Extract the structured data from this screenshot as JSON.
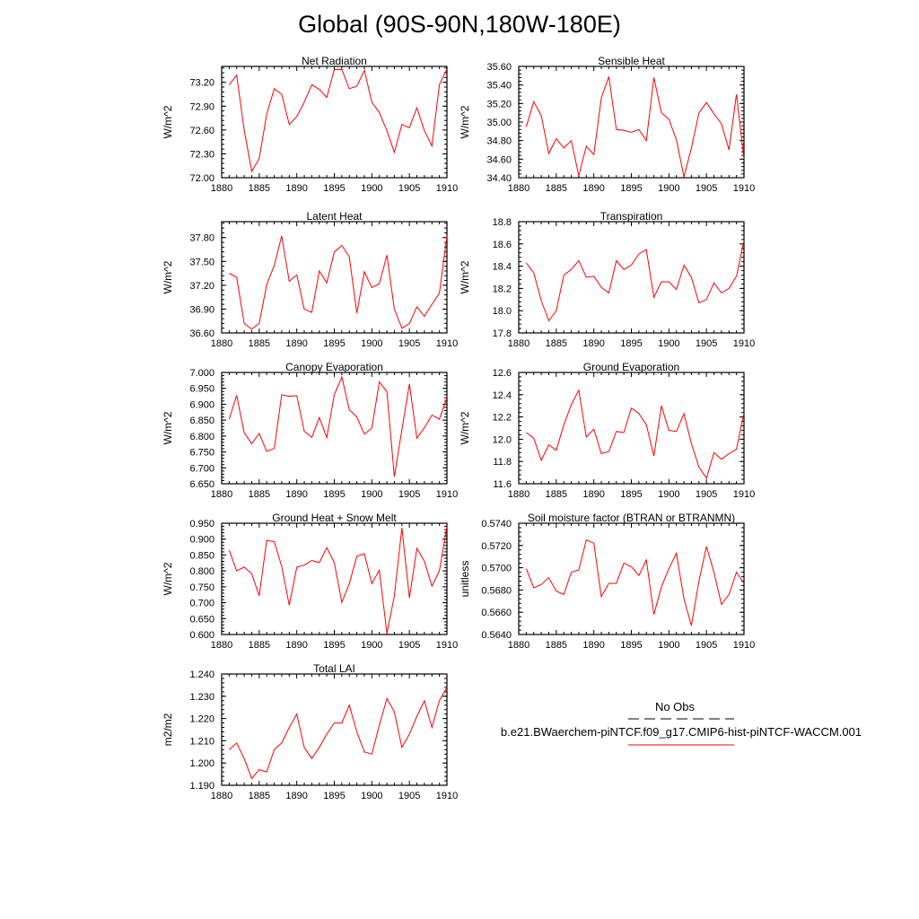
{
  "page": {
    "title": "Global (90S-90N,180W-180E)"
  },
  "legend": {
    "obs_label": "No Obs",
    "model_label": "b.e21.BWaerchem-piNTCF.f09_g17.CMIP6-hist-piNTCF-WACCM.001",
    "obs_color": "#000000",
    "model_color": "#ff0000"
  },
  "chart_data": [
    {
      "type": "line",
      "title": "Net Radiation",
      "ylabel": "W/m^2",
      "xlim": [
        1880,
        1910
      ],
      "ylim": [
        72.0,
        73.4
      ],
      "xticks": [
        1880,
        1885,
        1890,
        1895,
        1900,
        1905,
        1910
      ],
      "xtick_labels": [
        "1880",
        "1885",
        "1890",
        "1895",
        "1900",
        "1905",
        "1910"
      ],
      "yticks": [
        72.0,
        72.3,
        72.6,
        72.9,
        73.2
      ],
      "ytick_labels": [
        "72.00",
        "72.30",
        "72.60",
        "72.90",
        "73.20"
      ],
      "color": "#ff0000",
      "x": [
        1881,
        1882,
        1883,
        1884,
        1885,
        1886,
        1887,
        1888,
        1889,
        1890,
        1891,
        1892,
        1893,
        1894,
        1895,
        1896,
        1897,
        1898,
        1899,
        1900,
        1901,
        1902,
        1903,
        1904,
        1905,
        1906,
        1907,
        1908,
        1909,
        1910
      ],
      "y": [
        73.17,
        73.29,
        72.6,
        72.08,
        72.24,
        72.8,
        73.12,
        73.05,
        72.67,
        72.77,
        72.95,
        73.17,
        73.11,
        73.01,
        73.36,
        73.36,
        73.12,
        73.15,
        73.35,
        72.95,
        72.82,
        72.59,
        72.32,
        72.67,
        72.63,
        72.88,
        72.59,
        72.4,
        73.17,
        73.37
      ]
    },
    {
      "type": "line",
      "title": "Sensible Heat",
      "ylabel": "W/m^2",
      "xlim": [
        1880,
        1910
      ],
      "ylim": [
        34.4,
        35.6
      ],
      "xticks": [
        1880,
        1885,
        1890,
        1895,
        1900,
        1905,
        1910
      ],
      "xtick_labels": [
        "1880",
        "1885",
        "1890",
        "1895",
        "1900",
        "1905",
        "1910"
      ],
      "yticks": [
        34.4,
        34.6,
        34.8,
        35.0,
        35.2,
        35.4,
        35.6
      ],
      "ytick_labels": [
        "34.40",
        "34.60",
        "34.80",
        "35.00",
        "35.20",
        "35.40",
        "35.60"
      ],
      "color": "#ff0000",
      "x": [
        1881,
        1882,
        1883,
        1884,
        1885,
        1886,
        1887,
        1888,
        1889,
        1890,
        1891,
        1892,
        1893,
        1894,
        1895,
        1896,
        1897,
        1898,
        1899,
        1900,
        1901,
        1902,
        1903,
        1904,
        1905,
        1906,
        1907,
        1908,
        1909,
        1910
      ],
      "y": [
        34.95,
        35.22,
        35.07,
        34.66,
        34.82,
        34.72,
        34.8,
        34.42,
        34.74,
        34.65,
        35.26,
        35.49,
        34.92,
        34.91,
        34.89,
        34.92,
        34.8,
        35.48,
        35.1,
        35.03,
        34.81,
        34.41,
        34.72,
        35.1,
        35.21,
        35.09,
        34.98,
        34.7,
        35.3,
        34.6
      ]
    },
    {
      "type": "line",
      "title": "Latent Heat",
      "ylabel": "W/m^2",
      "xlim": [
        1880,
        1910
      ],
      "ylim": [
        36.6,
        38.0
      ],
      "xticks": [
        1880,
        1885,
        1890,
        1895,
        1900,
        1905,
        1910
      ],
      "xtick_labels": [
        "1880",
        "1885",
        "1890",
        "1895",
        "1900",
        "1905",
        "1910"
      ],
      "yticks": [
        36.6,
        36.9,
        37.2,
        37.5,
        37.8
      ],
      "ytick_labels": [
        "36.60",
        "36.90",
        "37.20",
        "37.50",
        "37.80"
      ],
      "color": "#ff0000",
      "x": [
        1881,
        1882,
        1883,
        1884,
        1885,
        1886,
        1887,
        1888,
        1889,
        1890,
        1891,
        1892,
        1893,
        1894,
        1895,
        1896,
        1897,
        1898,
        1899,
        1900,
        1901,
        1902,
        1903,
        1904,
        1905,
        1906,
        1907,
        1908,
        1909,
        1910
      ],
      "y": [
        37.35,
        37.3,
        36.72,
        36.65,
        36.72,
        37.21,
        37.45,
        37.82,
        37.25,
        37.33,
        36.9,
        36.86,
        37.38,
        37.23,
        37.62,
        37.7,
        37.56,
        36.85,
        37.37,
        37.17,
        37.22,
        37.58,
        36.9,
        36.66,
        36.72,
        36.93,
        36.81,
        36.96,
        37.1,
        37.82
      ]
    },
    {
      "type": "line",
      "title": "Transpiration",
      "ylabel": "W/m^2",
      "xlim": [
        1880,
        1910
      ],
      "ylim": [
        17.8,
        18.8
      ],
      "xticks": [
        1880,
        1885,
        1890,
        1895,
        1900,
        1905,
        1910
      ],
      "xtick_labels": [
        "1880",
        "1885",
        "1890",
        "1895",
        "1900",
        "1905",
        "1910"
      ],
      "yticks": [
        17.8,
        18.0,
        18.2,
        18.4,
        18.6,
        18.8
      ],
      "ytick_labels": [
        "17.8",
        "18.0",
        "18.2",
        "18.4",
        "18.6",
        "18.8"
      ],
      "color": "#ff0000",
      "x": [
        1881,
        1882,
        1883,
        1884,
        1885,
        1886,
        1887,
        1888,
        1889,
        1890,
        1891,
        1892,
        1893,
        1894,
        1895,
        1896,
        1897,
        1898,
        1899,
        1900,
        1901,
        1902,
        1903,
        1904,
        1905,
        1906,
        1907,
        1908,
        1909,
        1910
      ],
      "y": [
        18.43,
        18.34,
        18.09,
        17.91,
        18.0,
        18.32,
        18.37,
        18.45,
        18.3,
        18.31,
        18.21,
        18.16,
        18.45,
        18.37,
        18.41,
        18.51,
        18.55,
        18.12,
        18.26,
        18.26,
        18.19,
        18.41,
        18.3,
        18.07,
        18.1,
        18.25,
        18.16,
        18.2,
        18.31,
        18.63
      ]
    },
    {
      "type": "line",
      "title": "Canopy Evaporation",
      "ylabel": "W/m^2",
      "xlim": [
        1880,
        1910
      ],
      "ylim": [
        6.65,
        7.0
      ],
      "xticks": [
        1880,
        1885,
        1890,
        1895,
        1900,
        1905,
        1910
      ],
      "xtick_labels": [
        "1880",
        "1885",
        "1890",
        "1895",
        "1900",
        "1905",
        "1910"
      ],
      "yticks": [
        6.65,
        6.7,
        6.75,
        6.8,
        6.85,
        6.9,
        6.95,
        7.0
      ],
      "ytick_labels": [
        "6.650",
        "6.700",
        "6.750",
        "6.800",
        "6.850",
        "6.900",
        "6.950",
        "7.000"
      ],
      "color": "#ff0000",
      "x": [
        1881,
        1882,
        1883,
        1884,
        1885,
        1886,
        1887,
        1888,
        1889,
        1890,
        1891,
        1892,
        1893,
        1894,
        1895,
        1896,
        1897,
        1898,
        1899,
        1900,
        1901,
        1902,
        1903,
        1904,
        1905,
        1906,
        1907,
        1908,
        1909,
        1910
      ],
      "y": [
        6.853,
        6.928,
        6.81,
        6.776,
        6.808,
        6.752,
        6.761,
        6.93,
        6.925,
        6.927,
        6.815,
        6.796,
        6.858,
        6.795,
        6.93,
        6.986,
        6.883,
        6.86,
        6.806,
        6.825,
        6.97,
        6.94,
        6.672,
        6.82,
        6.964,
        6.793,
        6.826,
        6.866,
        6.853,
        6.92
      ]
    },
    {
      "type": "line",
      "title": "Ground Evaporation",
      "ylabel": "W/m^2",
      "xlim": [
        1880,
        1910
      ],
      "ylim": [
        11.6,
        12.6
      ],
      "xticks": [
        1880,
        1885,
        1890,
        1895,
        1900,
        1905,
        1910
      ],
      "xtick_labels": [
        "1880",
        "1885",
        "1890",
        "1895",
        "1900",
        "1905",
        "1910"
      ],
      "yticks": [
        11.6,
        11.8,
        12.0,
        12.2,
        12.4,
        12.6
      ],
      "ytick_labels": [
        "11.6",
        "11.8",
        "12.0",
        "12.2",
        "12.4",
        "12.6"
      ],
      "color": "#ff0000",
      "x": [
        1881,
        1882,
        1883,
        1884,
        1885,
        1886,
        1887,
        1888,
        1889,
        1890,
        1891,
        1892,
        1893,
        1894,
        1895,
        1896,
        1897,
        1898,
        1899,
        1900,
        1901,
        1902,
        1903,
        1904,
        1905,
        1906,
        1907,
        1908,
        1909,
        1910
      ],
      "y": [
        12.06,
        12.01,
        11.81,
        11.95,
        11.9,
        12.13,
        12.31,
        12.44,
        12.02,
        12.09,
        11.87,
        11.89,
        12.07,
        12.06,
        12.28,
        12.23,
        12.13,
        11.85,
        12.3,
        12.08,
        12.07,
        12.23,
        11.96,
        11.75,
        11.65,
        11.88,
        11.82,
        11.87,
        11.91,
        12.24
      ]
    },
    {
      "type": "line",
      "title": "Ground Heat + Snow Melt",
      "ylabel": "W/m^2",
      "xlim": [
        1880,
        1910
      ],
      "ylim": [
        0.6,
        0.95
      ],
      "xticks": [
        1880,
        1885,
        1890,
        1895,
        1900,
        1905,
        1910
      ],
      "xtick_labels": [
        "1880",
        "1885",
        "1890",
        "1895",
        "1900",
        "1905",
        "1910"
      ],
      "yticks": [
        0.6,
        0.65,
        0.7,
        0.75,
        0.8,
        0.85,
        0.9,
        0.95
      ],
      "ytick_labels": [
        "0.600",
        "0.650",
        "0.700",
        "0.750",
        "0.800",
        "0.850",
        "0.900",
        "0.950"
      ],
      "color": "#ff0000",
      "x": [
        1881,
        1882,
        1883,
        1884,
        1885,
        1886,
        1887,
        1888,
        1889,
        1890,
        1891,
        1892,
        1893,
        1894,
        1895,
        1896,
        1897,
        1898,
        1899,
        1900,
        1901,
        1902,
        1903,
        1904,
        1905,
        1906,
        1907,
        1908,
        1909,
        1910
      ],
      "y": [
        0.865,
        0.8,
        0.812,
        0.791,
        0.722,
        0.896,
        0.892,
        0.814,
        0.692,
        0.812,
        0.818,
        0.833,
        0.826,
        0.873,
        0.826,
        0.701,
        0.76,
        0.846,
        0.854,
        0.76,
        0.802,
        0.604,
        0.721,
        0.936,
        0.715,
        0.871,
        0.83,
        0.752,
        0.8,
        0.94
      ]
    },
    {
      "type": "line",
      "title": "Soil moisture factor (BTRAN or BTRANMN)",
      "ylabel": "unitless",
      "xlim": [
        1880,
        1910
      ],
      "ylim": [
        0.564,
        0.574
      ],
      "xticks": [
        1880,
        1885,
        1890,
        1895,
        1900,
        1905,
        1910
      ],
      "xtick_labels": [
        "1880",
        "1885",
        "1890",
        "1895",
        "1900",
        "1905",
        "1910"
      ],
      "yticks": [
        0.564,
        0.566,
        0.568,
        0.57,
        0.572,
        0.574
      ],
      "ytick_labels": [
        "0.5640",
        "0.5660",
        "0.5680",
        "0.5700",
        "0.5720",
        "0.5740"
      ],
      "color": "#ff0000",
      "x": [
        1881,
        1882,
        1883,
        1884,
        1885,
        1886,
        1887,
        1888,
        1889,
        1890,
        1891,
        1892,
        1893,
        1894,
        1895,
        1896,
        1897,
        1898,
        1899,
        1900,
        1901,
        1902,
        1903,
        1904,
        1905,
        1906,
        1907,
        1908,
        1909,
        1910
      ],
      "y": [
        0.5699,
        0.5682,
        0.5685,
        0.5691,
        0.5679,
        0.5676,
        0.5696,
        0.5698,
        0.5725,
        0.5722,
        0.5674,
        0.5686,
        0.5686,
        0.5704,
        0.5701,
        0.5693,
        0.5707,
        0.5658,
        0.5683,
        0.5699,
        0.5713,
        0.5672,
        0.5648,
        0.5688,
        0.5719,
        0.5696,
        0.5667,
        0.5676,
        0.5696,
        0.5686
      ]
    },
    {
      "type": "line",
      "title": "Total LAI",
      "ylabel": "m2/m2",
      "xlim": [
        1880,
        1910
      ],
      "ylim": [
        1.19,
        1.24
      ],
      "xticks": [
        1880,
        1885,
        1890,
        1895,
        1900,
        1905,
        1910
      ],
      "xtick_labels": [
        "1880",
        "1885",
        "1890",
        "1895",
        "1900",
        "1905",
        "1910"
      ],
      "yticks": [
        1.19,
        1.2,
        1.21,
        1.22,
        1.23,
        1.24
      ],
      "ytick_labels": [
        "1.190",
        "1.200",
        "1.210",
        "1.220",
        "1.230",
        "1.240"
      ],
      "color": "#ff0000",
      "x": [
        1881,
        1882,
        1883,
        1884,
        1885,
        1886,
        1887,
        1888,
        1889,
        1890,
        1891,
        1892,
        1893,
        1894,
        1895,
        1896,
        1897,
        1898,
        1899,
        1900,
        1901,
        1902,
        1903,
        1904,
        1905,
        1906,
        1907,
        1908,
        1909,
        1910
      ],
      "y": [
        1.206,
        1.209,
        1.202,
        1.193,
        1.197,
        1.196,
        1.206,
        1.209,
        1.216,
        1.222,
        1.207,
        1.202,
        1.207,
        1.213,
        1.218,
        1.218,
        1.226,
        1.214,
        1.205,
        1.204,
        1.217,
        1.229,
        1.223,
        1.207,
        1.213,
        1.221,
        1.228,
        1.216,
        1.228,
        1.234
      ]
    }
  ]
}
